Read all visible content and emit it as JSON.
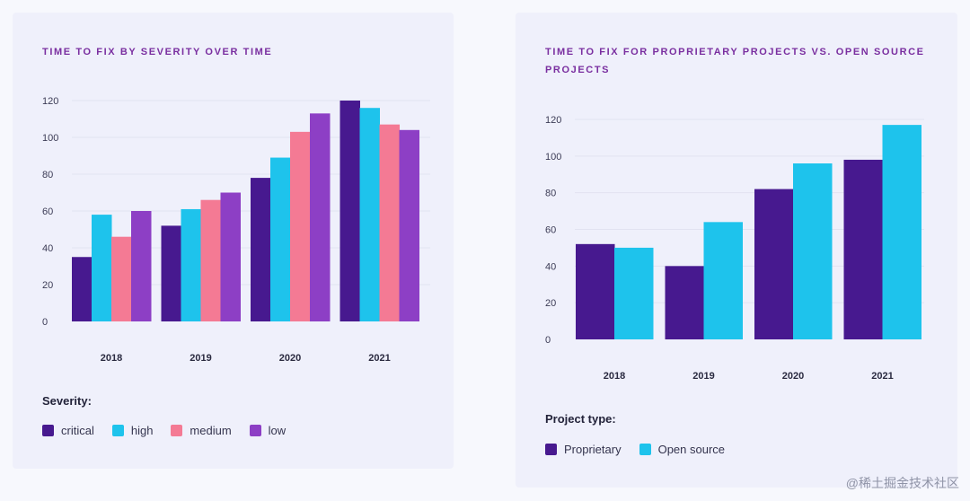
{
  "chart_data": [
    {
      "type": "bar",
      "title": "TIME TO FIX BY SEVERITY OVER TIME",
      "categories": [
        "2018",
        "2019",
        "2020",
        "2021"
      ],
      "series": [
        {
          "name": "critical",
          "color": "#47198f",
          "values": [
            35,
            52,
            78,
            120
          ]
        },
        {
          "name": "high",
          "color": "#1ec3ec",
          "values": [
            58,
            61,
            89,
            116
          ]
        },
        {
          "name": "medium",
          "color": "#f47a94",
          "values": [
            46,
            66,
            103,
            107
          ]
        },
        {
          "name": "low",
          "color": "#8d3fc5",
          "values": [
            60,
            70,
            113,
            104
          ]
        }
      ],
      "yticks": [
        0,
        20,
        40,
        60,
        80,
        100,
        120
      ],
      "ylim": [
        0,
        120
      ],
      "legend_title": "Severity:",
      "xlabel": "",
      "ylabel": ""
    },
    {
      "type": "bar",
      "title": "TIME TO FIX FOR PROPRIETARY PROJECTS VS. OPEN SOURCE PROJECTS",
      "categories": [
        "2018",
        "2019",
        "2020",
        "2021"
      ],
      "series": [
        {
          "name": "Proprietary",
          "color": "#47198f",
          "values": [
            52,
            40,
            82,
            98
          ]
        },
        {
          "name": "Open source",
          "color": "#1ec3ec",
          "values": [
            50,
            64,
            96,
            117
          ]
        }
      ],
      "yticks": [
        0,
        20,
        40,
        60,
        80,
        100,
        120
      ],
      "ylim": [
        0,
        120
      ],
      "legend_title": "Project type:",
      "xlabel": "",
      "ylabel": ""
    }
  ],
  "watermark": "@稀土掘金技术社区"
}
